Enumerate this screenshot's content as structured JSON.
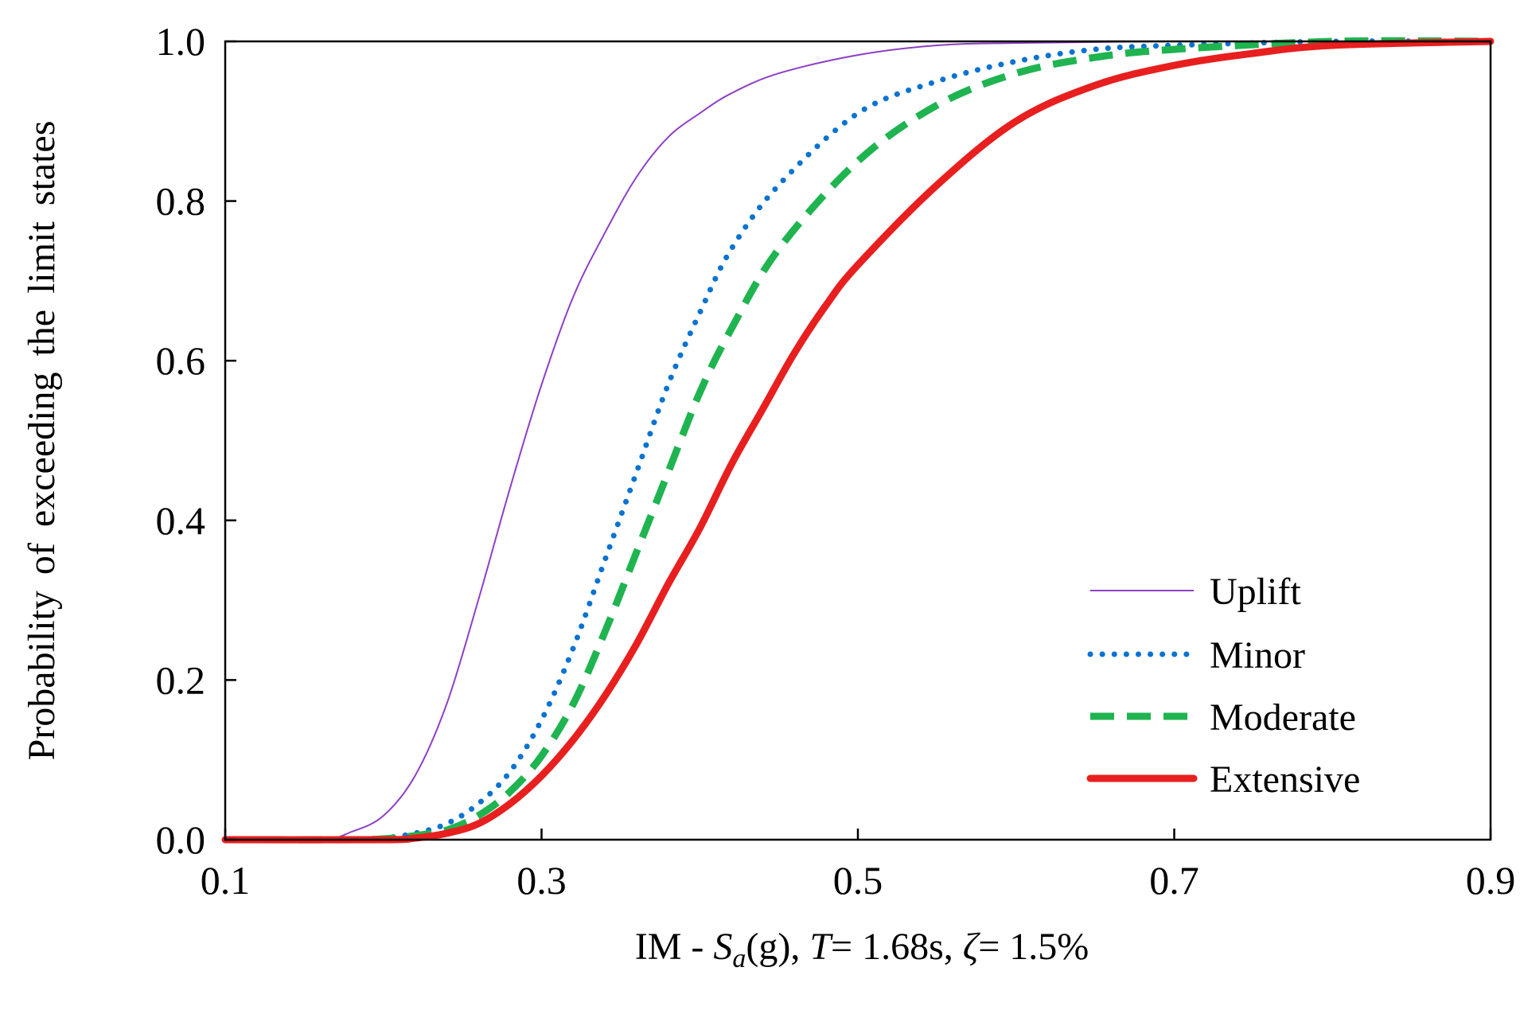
{
  "chart_data": {
    "type": "line",
    "title": "",
    "xlabel": {
      "prefix": "IM - ",
      "s": "S",
      "s_sub": "a",
      "unit": "(g), ",
      "t": "T",
      "t_value": "= 1.68s, ",
      "zeta": "ζ",
      "zeta_value": "= 1.5%"
    },
    "ylabel": "Probability of exceeding the limit states",
    "xlim": [
      0.1,
      0.9
    ],
    "ylim": [
      0.0,
      1.0
    ],
    "x_ticks": [
      0.1,
      0.3,
      0.5,
      0.7,
      0.9
    ],
    "x_tick_labels": [
      "0.1",
      "0.3",
      "0.5",
      "0.7",
      "0.9"
    ],
    "y_ticks": [
      0.0,
      0.2,
      0.4,
      0.6,
      0.8,
      1.0
    ],
    "y_tick_labels": [
      "0.0",
      "0.2",
      "0.4",
      "0.6",
      "0.8",
      "1.0"
    ],
    "grid": false,
    "legend_position": "bottom-right",
    "series": [
      {
        "name": "Uplift",
        "color": "#8e3fc4",
        "style": "solid-thin",
        "x": [
          0.1,
          0.16,
          0.18,
          0.2,
          0.22,
          0.24,
          0.26,
          0.28,
          0.3,
          0.32,
          0.34,
          0.36,
          0.38,
          0.4,
          0.42,
          0.45,
          0.5,
          0.55,
          0.6,
          0.7,
          0.8,
          0.9
        ],
        "y": [
          0.0,
          0.0,
          0.01,
          0.03,
          0.08,
          0.17,
          0.3,
          0.44,
          0.57,
          0.68,
          0.76,
          0.83,
          0.88,
          0.91,
          0.935,
          0.96,
          0.983,
          0.995,
          0.998,
          1.0,
          1.0,
          1.0
        ]
      },
      {
        "name": "Minor",
        "color": "#0a73d0",
        "style": "dotted",
        "x": [
          0.1,
          0.18,
          0.2,
          0.22,
          0.24,
          0.26,
          0.28,
          0.3,
          0.32,
          0.34,
          0.36,
          0.38,
          0.4,
          0.42,
          0.45,
          0.5,
          0.55,
          0.6,
          0.65,
          0.7,
          0.8,
          0.9
        ],
        "y": [
          0.0,
          0.0,
          0.002,
          0.008,
          0.02,
          0.045,
          0.085,
          0.15,
          0.24,
          0.35,
          0.46,
          0.57,
          0.66,
          0.74,
          0.82,
          0.91,
          0.95,
          0.975,
          0.99,
          0.995,
          1.0,
          1.0
        ]
      },
      {
        "name": "Moderate",
        "color": "#1fb450",
        "style": "dashed",
        "x": [
          0.1,
          0.18,
          0.2,
          0.22,
          0.24,
          0.26,
          0.28,
          0.3,
          0.32,
          0.34,
          0.36,
          0.38,
          0.4,
          0.42,
          0.45,
          0.5,
          0.55,
          0.6,
          0.65,
          0.7,
          0.8,
          0.9
        ],
        "y": [
          0.0,
          0.0,
          0.001,
          0.005,
          0.012,
          0.03,
          0.06,
          0.105,
          0.17,
          0.26,
          0.36,
          0.46,
          0.56,
          0.64,
          0.74,
          0.85,
          0.92,
          0.96,
          0.98,
          0.99,
          1.0,
          1.0
        ]
      },
      {
        "name": "Extensive",
        "color": "#e81f1f",
        "style": "solid-thick",
        "x": [
          0.1,
          0.2,
          0.22,
          0.24,
          0.26,
          0.28,
          0.3,
          0.32,
          0.34,
          0.36,
          0.38,
          0.4,
          0.42,
          0.44,
          0.46,
          0.48,
          0.5,
          0.55,
          0.6,
          0.65,
          0.7,
          0.75,
          0.8,
          0.9
        ],
        "y": [
          0.0,
          0.0,
          0.002,
          0.008,
          0.02,
          0.045,
          0.08,
          0.125,
          0.18,
          0.245,
          0.32,
          0.39,
          0.47,
          0.54,
          0.61,
          0.67,
          0.72,
          0.82,
          0.9,
          0.945,
          0.97,
          0.985,
          0.995,
          1.0
        ]
      }
    ]
  }
}
